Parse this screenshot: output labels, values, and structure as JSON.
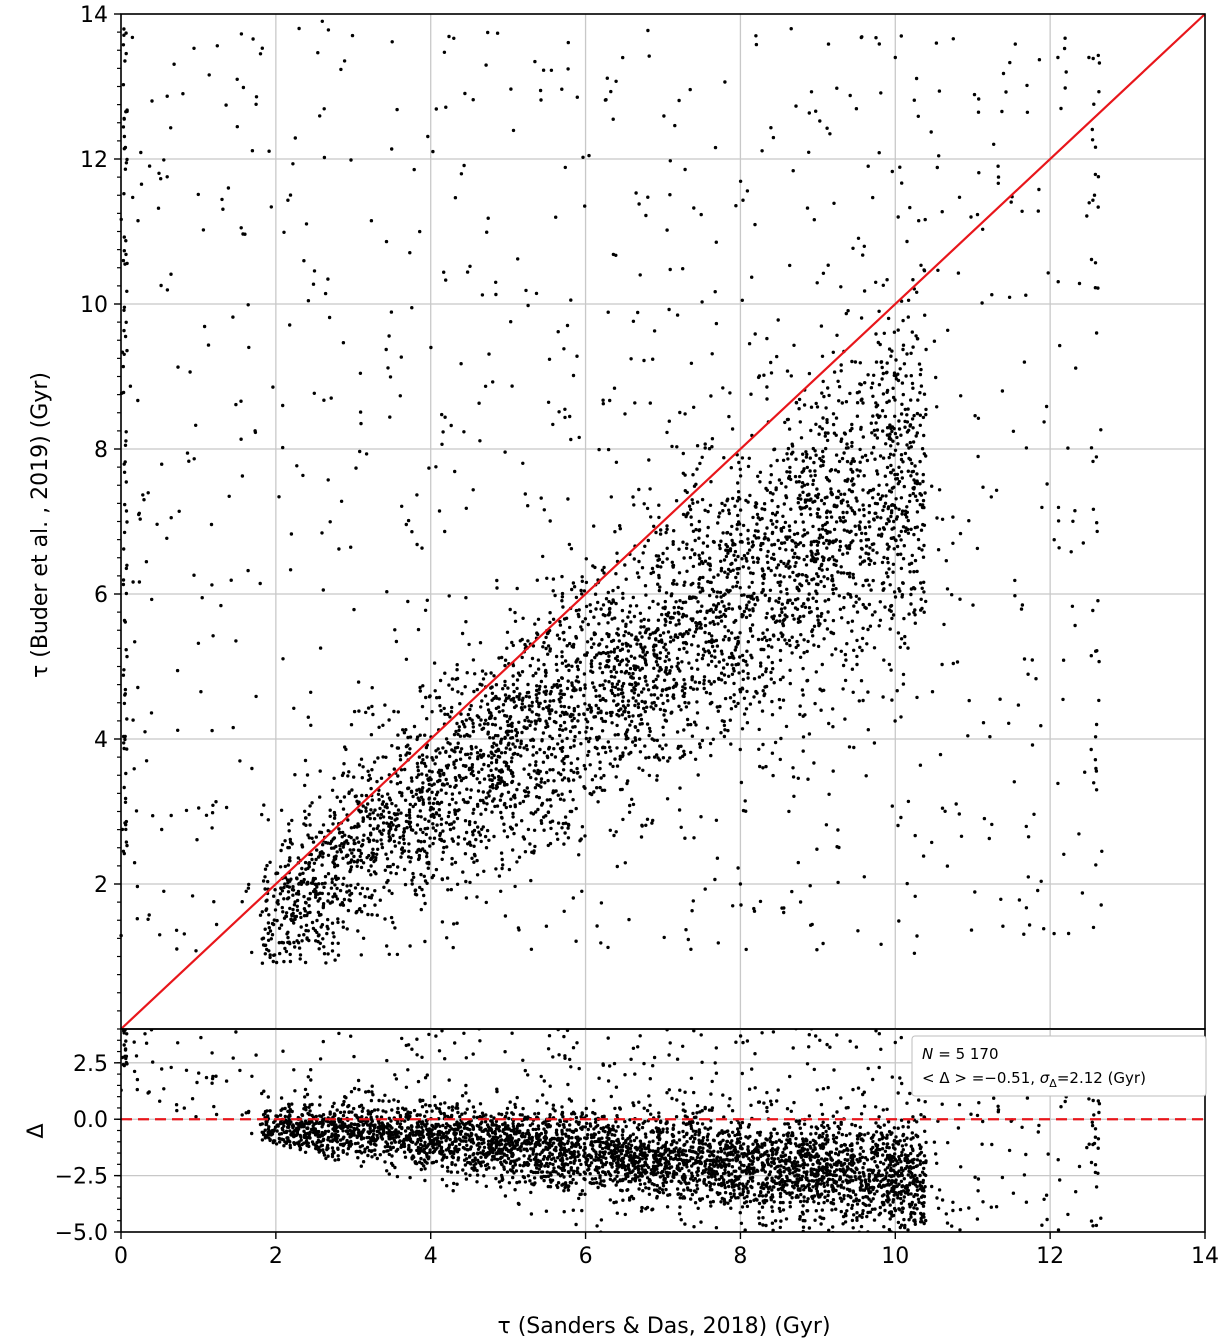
{
  "chart_data": [
    {
      "type": "scatter",
      "panel": "main",
      "title": "",
      "xlabel": "τ (Sanders & Das,  2018) (Gyr)",
      "ylabel": "τ (Buder et al. , 2019) (Gyr)",
      "xlim": [
        0,
        14
      ],
      "ylim": [
        0,
        14
      ],
      "xticks": [
        "0",
        "2",
        "4",
        "6",
        "8",
        "10",
        "12",
        "14"
      ],
      "yticks": [
        "2",
        "4",
        "6",
        "8",
        "10",
        "12",
        "14"
      ],
      "grid": true,
      "marker_color": "#000000",
      "reference_line": {
        "x": [
          0,
          14
        ],
        "y": [
          0,
          14
        ],
        "color": "#e8161b",
        "style": "solid"
      },
      "n_points": 5170,
      "point_density_description": "dense cloud along the 1:1 line from about 1.8 to 10 Gyr; older stars fall below the line; sparse outliers across the panel",
      "notable_points": [
        {
          "x": 2.3,
          "y": 13.8
        },
        {
          "x": 2.6,
          "y": 13.9
        },
        {
          "x": 0.4,
          "y": 12.8
        },
        {
          "x": 0.8,
          "y": 12.9
        },
        {
          "x": 8.2,
          "y": 13.7
        },
        {
          "x": 10.0,
          "y": 13.4
        },
        {
          "x": 12.1,
          "y": 13.4
        },
        {
          "x": 12.5,
          "y": 13.4
        },
        {
          "x": 5.3,
          "y": 1.1
        },
        {
          "x": 0.5,
          "y": 1.3
        },
        {
          "x": 7.9,
          "y": 1.7
        },
        {
          "x": 8.0,
          "y": 2.0
        },
        {
          "x": 12.6,
          "y": 3.3
        },
        {
          "x": 12.6,
          "y": 4.2
        },
        {
          "x": 9.6,
          "y": 2.1
        },
        {
          "x": 12.6,
          "y": 9.6
        }
      ]
    },
    {
      "type": "scatter",
      "panel": "residual",
      "xlabel": "τ (Sanders & Das,  2018) (Gyr)",
      "ylabel": "Δ",
      "xlim": [
        0,
        14
      ],
      "ylim": [
        -5.0,
        4.0
      ],
      "xticks": [
        "0",
        "2",
        "4",
        "6",
        "8",
        "10",
        "12",
        "14"
      ],
      "yticks": [
        "−5.0",
        "−2.5",
        "0.0",
        "2.5"
      ],
      "ytick_values": [
        -5.0,
        -2.5,
        0.0,
        2.5
      ],
      "grid": true,
      "marker_color": "#000000",
      "reference_line": {
        "y": 0.0,
        "color": "#e8161b",
        "style": "dashed"
      },
      "trend_description": "residuals decline from about 0 at 2 Gyr to about −2 at 8–9 Gyr",
      "stats": {
        "n_label": "N",
        "n_value": "= 5 170",
        "mean_label": "< Δ > =−0.51, ",
        "sigma_label": "σ",
        "sigma_sub": "Δ",
        "sigma_value": "=2.12 (Gyr)"
      }
    }
  ]
}
